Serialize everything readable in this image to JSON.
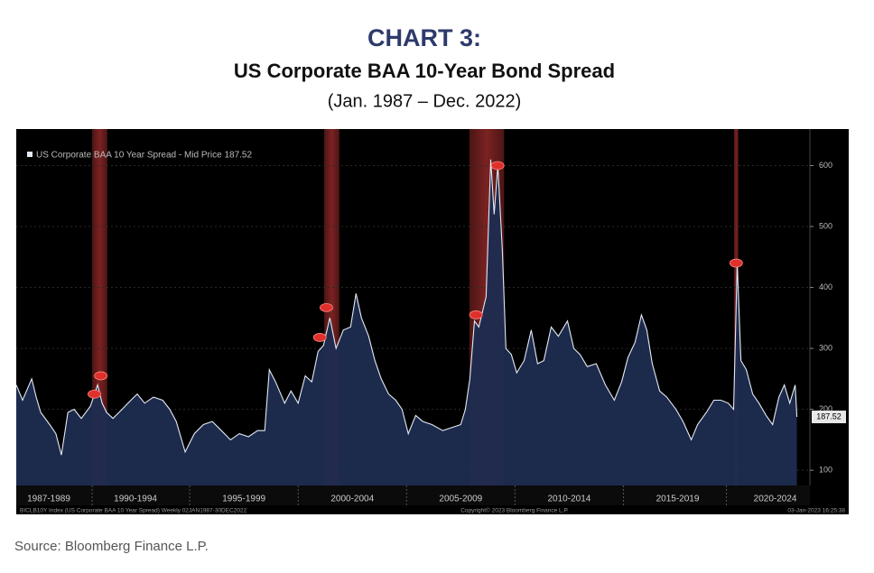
{
  "chart_data": {
    "type": "area",
    "title": "CHART 3:",
    "subtitle": "US Corporate BAA 10-Year Bond Spread",
    "date_range": "(Jan. 1987 – Dec. 2022)",
    "legend_text": "US Corporate BAA 10 Year Spread - Mid Price 187.52",
    "legend_position": "top-left",
    "footer_left": "BICLB10Y Index (US Corporate BAA 10 Year Spread)  Weekly 02JAN1987-30DEC2022",
    "footer_center": "Copyright© 2023 Bloomberg Finance L.P.",
    "footer_right": "03-Jan-2023 16:25:38",
    "x": [
      1987.0,
      1987.29,
      1987.71,
      1987.92,
      1988.13,
      1988.54,
      1988.83,
      1989.08,
      1989.38,
      1989.67,
      1990.0,
      1990.42,
      1990.75,
      1990.96,
      1991.17,
      1991.46,
      1991.88,
      1992.29,
      1992.58,
      1992.92,
      1993.33,
      1993.75,
      1994.08,
      1994.38,
      1994.79,
      1995.21,
      1995.63,
      1996.04,
      1996.46,
      1996.88,
      1997.29,
      1997.71,
      1998.13,
      1998.46,
      1998.67,
      1998.96,
      1999.38,
      1999.67,
      2000.0,
      2000.33,
      2000.63,
      2000.92,
      2001.17,
      2001.46,
      2001.75,
      2002.08,
      2002.42,
      2002.67,
      2002.92,
      2003.25,
      2003.54,
      2003.83,
      2004.17,
      2004.5,
      2004.79,
      2005.08,
      2005.42,
      2005.75,
      2006.17,
      2006.67,
      2007.08,
      2007.5,
      2007.71,
      2007.92,
      2008.13,
      2008.33,
      2008.67,
      2008.88,
      2009.04,
      2009.21,
      2009.42,
      2009.58,
      2009.83,
      2010.08,
      2010.42,
      2010.75,
      2011.04,
      2011.33,
      2011.67,
      2012.0,
      2012.42,
      2012.71,
      2013.0,
      2013.33,
      2013.75,
      2014.17,
      2014.58,
      2014.92,
      2015.21,
      2015.54,
      2015.83,
      2016.08,
      2016.33,
      2016.67,
      2017.0,
      2017.42,
      2017.75,
      2018.13,
      2018.42,
      2018.83,
      2019.17,
      2019.5,
      2019.83,
      2020.08,
      2020.25,
      2020.42,
      2020.67,
      2020.96,
      2021.25,
      2021.58,
      2021.88,
      2022.17,
      2022.42,
      2022.67,
      2022.92,
      2023.0
    ],
    "series": [
      {
        "name": "US Corporate BAA 10 Year Spread",
        "color": "#e4eaf4",
        "fill_color": "#1d2c50",
        "values": [
          240,
          215,
          250,
          220,
          195,
          175,
          160,
          125,
          195,
          200,
          185,
          205,
          240,
          210,
          195,
          185,
          200,
          215,
          225,
          210,
          220,
          215,
          200,
          180,
          130,
          160,
          175,
          180,
          165,
          150,
          160,
          155,
          165,
          165,
          265,
          245,
          210,
          230,
          210,
          255,
          245,
          295,
          305,
          350,
          300,
          330,
          335,
          390,
          350,
          320,
          280,
          250,
          225,
          215,
          200,
          160,
          190,
          180,
          175,
          165,
          170,
          175,
          200,
          250,
          345,
          335,
          385,
          610,
          520,
          600,
          460,
          300,
          290,
          260,
          280,
          330,
          275,
          280,
          335,
          320,
          345,
          300,
          290,
          270,
          275,
          240,
          215,
          245,
          285,
          310,
          355,
          330,
          275,
          230,
          220,
          200,
          180,
          150,
          175,
          195,
          215,
          215,
          210,
          200,
          440,
          280,
          265,
          225,
          210,
          190,
          175,
          220,
          240,
          210,
          240,
          187.52
        ]
      }
    ],
    "shaded_ranges": [
      [
        1990.5,
        1991.2
      ],
      [
        2001.2,
        2001.9
      ],
      [
        2007.9,
        2009.5
      ],
      [
        2020.1,
        2020.3
      ]
    ],
    "shade_color": "#8a2626",
    "markers": {
      "color": "#e0302c",
      "x": [
        1990.6,
        1990.9,
        2001.0,
        2001.3,
        2008.2,
        2009.2,
        2020.2
      ],
      "values": [
        225,
        255,
        318,
        367,
        355,
        600,
        440
      ]
    },
    "xlim": [
      1987,
      2023.6
    ],
    "ylim": [
      75,
      660
    ],
    "yticks": [
      100,
      200,
      300,
      400,
      500,
      600
    ],
    "xticks": [
      {
        "value": 1988.5,
        "label": "1987-1989"
      },
      {
        "value": 1992.5,
        "label": "1990-1994"
      },
      {
        "value": 1997.5,
        "label": "1995-1999"
      },
      {
        "value": 2002.5,
        "label": "2000-2004"
      },
      {
        "value": 2007.5,
        "label": "2005-2009"
      },
      {
        "value": 2012.5,
        "label": "2010-2014"
      },
      {
        "value": 2017.5,
        "label": "2015-2019"
      },
      {
        "value": 2022,
        "label": "2020-2024"
      }
    ],
    "y_axis_side": "right"
  },
  "source": "Source: Bloomberg Finance L.P."
}
